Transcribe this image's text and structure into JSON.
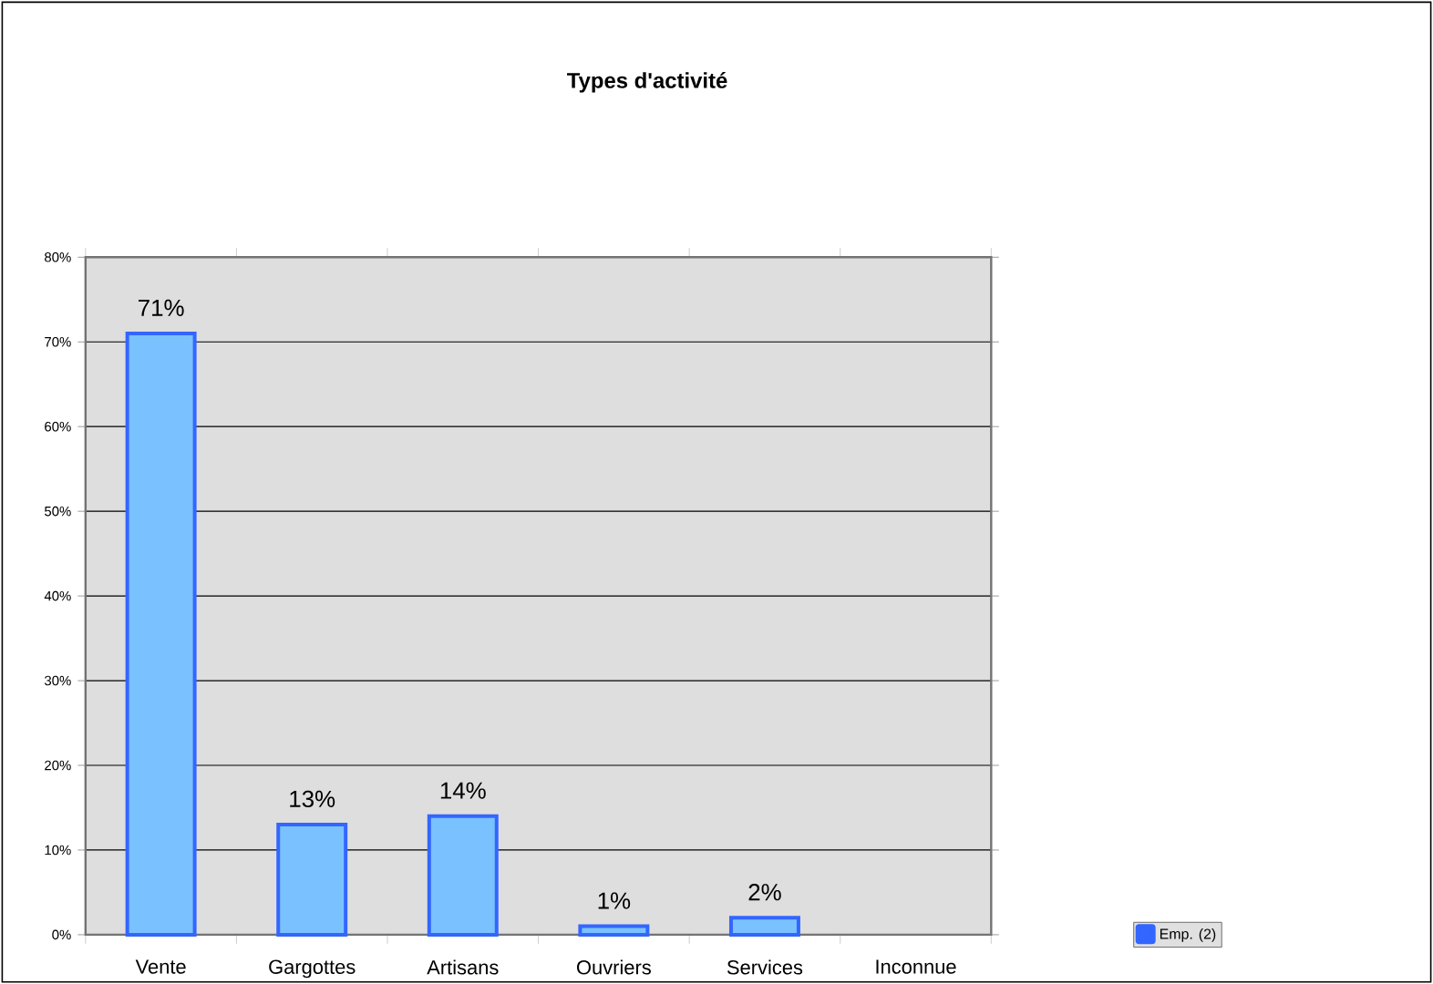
{
  "chart_data": {
    "type": "bar",
    "title": "Types d'activité",
    "categories": [
      "Vente",
      "Gargottes",
      "Artisans",
      "Ouvriers",
      "Services",
      "Inconnue"
    ],
    "series": [
      {
        "name": "Emp. (2)",
        "color": "#3366ff",
        "values": [
          71,
          13,
          14,
          1,
          2,
          null
        ],
        "value_labels": [
          "71%",
          "13%",
          "14%",
          "1%",
          "2%",
          null
        ]
      }
    ],
    "ylim": [
      0,
      80
    ],
    "yticks": [
      {
        "value": 0,
        "label": "0%"
      },
      {
        "value": 10,
        "label": "10%"
      },
      {
        "value": 20,
        "label": "20%"
      },
      {
        "value": 30,
        "label": "30%"
      },
      {
        "value": 40,
        "label": "40%"
      },
      {
        "value": 50,
        "label": "50%"
      },
      {
        "value": 60,
        "label": "60%"
      },
      {
        "value": 70,
        "label": "70%"
      },
      {
        "value": 80,
        "label": "80%"
      }
    ],
    "grid": "y",
    "legend": "right"
  }
}
